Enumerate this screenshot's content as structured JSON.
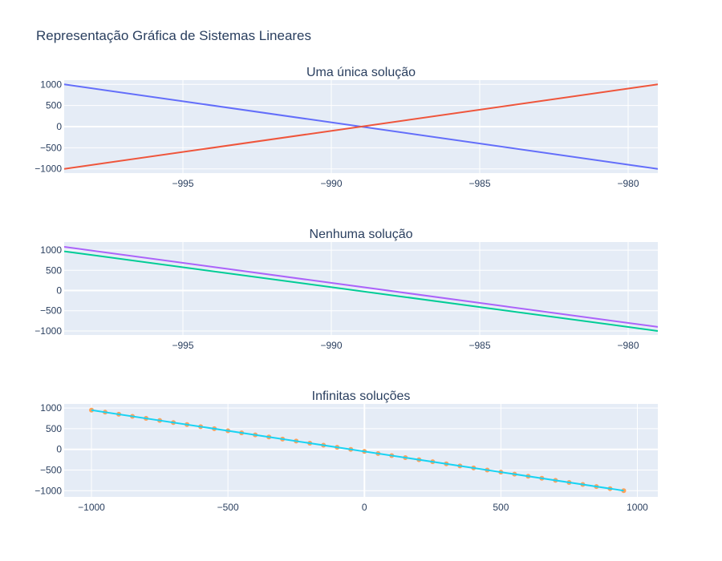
{
  "chart_data": {
    "title": "Representação Gráfica de Sistemas Lineares",
    "subplots": [
      {
        "type": "line",
        "title": "Uma única solução",
        "xlim": [
          -999,
          -979
        ],
        "ylim": [
          -1100,
          1100
        ],
        "x_ticks": [
          -995,
          -990,
          -985,
          -980
        ],
        "x_tick_labels": [
          "−995",
          "−990",
          "−985",
          "−980"
        ],
        "y_ticks": [
          1000,
          500,
          0,
          -500,
          -1000
        ],
        "y_tick_labels": [
          "1000",
          "500",
          "0",
          "−500",
          "−1000"
        ],
        "series": [
          {
            "color": "#636efa",
            "x": [
              -999,
              -979
            ],
            "y": [
              1000,
              -1000
            ],
            "mode": "lines"
          },
          {
            "color": "#ef553b",
            "x": [
              -999,
              -979
            ],
            "y": [
              -1000,
              1000
            ],
            "mode": "lines"
          }
        ]
      },
      {
        "type": "line",
        "title": "Nenhuma solução",
        "xlim": [
          -999,
          -979
        ],
        "ylim": [
          -1100,
          1200
        ],
        "x_ticks": [
          -995,
          -990,
          -985,
          -980
        ],
        "x_tick_labels": [
          "−995",
          "−990",
          "−985",
          "−980"
        ],
        "y_ticks": [
          1000,
          500,
          0,
          -500,
          -1000
        ],
        "y_tick_labels": [
          "1000",
          "500",
          "0",
          "−500",
          "−1000"
        ],
        "series": [
          {
            "color": "#00cc96",
            "x": [
              -999,
              -979
            ],
            "y": [
              970,
              -1000
            ],
            "mode": "lines"
          },
          {
            "color": "#ab63fa",
            "x": [
              -999,
              -979
            ],
            "y": [
              1080,
              -900
            ],
            "mode": "lines"
          }
        ]
      },
      {
        "type": "line",
        "title": "Infinitas soluções",
        "xlim": [
          -1100,
          1075
        ],
        "ylim": [
          -1150,
          1100
        ],
        "x_ticks": [
          -1000,
          -500,
          0,
          500,
          1000
        ],
        "x_tick_labels": [
          "−1000",
          "−500",
          "0",
          "500",
          "1000"
        ],
        "y_ticks": [
          1000,
          500,
          0,
          -500,
          -1000
        ],
        "y_tick_labels": [
          "1000",
          "500",
          "0",
          "−500",
          "−1000"
        ],
        "series": [
          {
            "color": "#ffa15a",
            "x_start": -1000,
            "x_end": 950,
            "x_step": 50,
            "y_at_start": 950,
            "y_at_end": -1000,
            "mode": "markers"
          },
          {
            "color": "#19d3f3",
            "x": [
              -1000,
              950
            ],
            "y": [
              950,
              -1000
            ],
            "mode": "lines"
          }
        ]
      }
    ]
  }
}
